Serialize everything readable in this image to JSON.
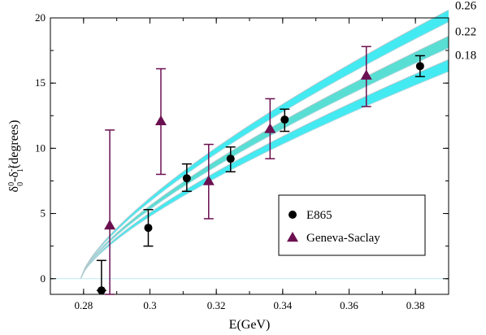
{
  "chart_data": {
    "type": "scatter",
    "xlabel": "E(GeV)",
    "ylabel": {
      "prefix": "δ",
      "sup1": "0",
      "sub1": "0",
      "mid": "-δ",
      "sup2": "-1",
      "sub2": "1",
      "suffix": "(degrees)"
    },
    "xlim": [
      0.27,
      0.39
    ],
    "ylim": [
      -1.2,
      20
    ],
    "x_ticks": [
      0.28,
      0.3,
      0.32,
      0.34,
      0.36,
      0.38
    ],
    "x_tick_labels": [
      "0.28",
      "0.3",
      "0.32",
      "0.34",
      "0.36",
      "0.38"
    ],
    "y_ticks": [
      0,
      5,
      10,
      15,
      20
    ],
    "y_tick_labels": [
      "0",
      "5",
      "10",
      "15",
      "20"
    ],
    "legend_position": "lower-right",
    "series": [
      {
        "name": "E865",
        "marker": "circle",
        "color": "#000000",
        "points": [
          {
            "x": 0.2854,
            "y": -0.9,
            "lo": -0.9,
            "hi": 1.4
          },
          {
            "x": 0.2995,
            "y": 3.9,
            "lo": 2.5,
            "hi": 5.3
          },
          {
            "x": 0.3111,
            "y": 7.7,
            "lo": 6.7,
            "hi": 8.8
          },
          {
            "x": 0.3243,
            "y": 9.2,
            "lo": 8.2,
            "hi": 10.1
          },
          {
            "x": 0.3406,
            "y": 12.2,
            "lo": 11.3,
            "hi": 13.0
          },
          {
            "x": 0.3814,
            "y": 16.3,
            "lo": 15.5,
            "hi": 17.1
          }
        ]
      },
      {
        "name": "Geneva-Saclay",
        "marker": "triangle",
        "color": "#6b1050",
        "points": [
          {
            "x": 0.2879,
            "y": 4.1,
            "lo": -1.2,
            "hi": 11.4
          },
          {
            "x": 0.3033,
            "y": 12.1,
            "lo": 8.0,
            "hi": 16.1
          },
          {
            "x": 0.3177,
            "y": 7.5,
            "lo": 4.6,
            "hi": 10.3
          },
          {
            "x": 0.3362,
            "y": 11.5,
            "lo": 9.2,
            "hi": 13.8
          },
          {
            "x": 0.3652,
            "y": 15.6,
            "lo": 13.2,
            "hi": 17.8
          }
        ]
      }
    ],
    "bands": [
      {
        "label": "0.26",
        "color": "#22e6ee",
        "threshold": 0.2791,
        "end_lo": 19.7,
        "end_hi": 20.6
      },
      {
        "label": "0.22",
        "color": "#3cd8cc",
        "threshold": 0.2791,
        "end_lo": 17.7,
        "end_hi": 18.6
      },
      {
        "label": "0.18",
        "color": "#22e6ee",
        "threshold": 0.2791,
        "end_lo": 15.9,
        "end_hi": 16.8
      }
    ]
  }
}
